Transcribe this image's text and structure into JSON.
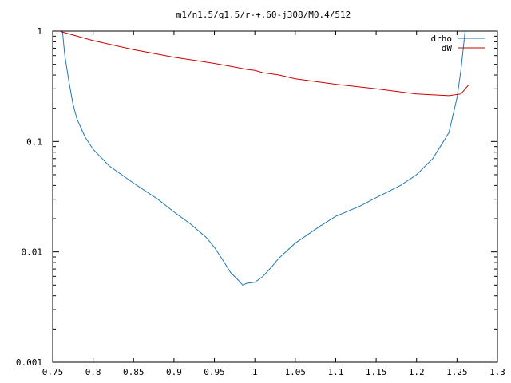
{
  "chart_data": {
    "type": "line",
    "title": "m1/n1.5/q1.5/r-+.60-j308/M0.4/512",
    "xlabel": "",
    "ylabel": "",
    "xlim": [
      0.75,
      1.3
    ],
    "ylim": [
      0.001,
      1
    ],
    "yscale": "log",
    "grid": false,
    "legend_position": "top-right",
    "x_ticks": [
      "0.75",
      "0.8",
      "0.85",
      "0.9",
      "0.95",
      "1",
      "1.05",
      "1.1",
      "1.15",
      "1.2",
      "1.25",
      "1.3"
    ],
    "y_ticks": [
      "0.001",
      "0.01",
      "0.1",
      "1"
    ],
    "series": [
      {
        "name": "drho",
        "color": "#1f77b4",
        "x": [
          0.762,
          0.765,
          0.77,
          0.775,
          0.78,
          0.79,
          0.8,
          0.82,
          0.85,
          0.88,
          0.9,
          0.92,
          0.94,
          0.95,
          0.96,
          0.97,
          0.98,
          0.985,
          0.99,
          1.0,
          1.01,
          1.02,
          1.03,
          1.05,
          1.08,
          1.1,
          1.13,
          1.15,
          1.18,
          1.2,
          1.22,
          1.24,
          1.25,
          1.255,
          1.26
        ],
        "y": [
          1.0,
          0.6,
          0.35,
          0.22,
          0.16,
          0.11,
          0.085,
          0.06,
          0.042,
          0.03,
          0.023,
          0.018,
          0.0135,
          0.011,
          0.0085,
          0.0065,
          0.0055,
          0.005,
          0.0052,
          0.0053,
          0.006,
          0.0072,
          0.0088,
          0.012,
          0.017,
          0.021,
          0.026,
          0.031,
          0.04,
          0.05,
          0.07,
          0.12,
          0.25,
          0.45,
          1.0
        ]
      },
      {
        "name": "dW",
        "color": "#cc0000",
        "x": [
          0.76,
          0.8,
          0.85,
          0.9,
          0.95,
          0.97,
          0.99,
          1.0,
          1.01,
          1.03,
          1.05,
          1.1,
          1.15,
          1.2,
          1.24,
          1.255,
          1.265
        ],
        "y": [
          0.99,
          0.82,
          0.68,
          0.58,
          0.51,
          0.48,
          0.45,
          0.44,
          0.42,
          0.4,
          0.37,
          0.33,
          0.3,
          0.27,
          0.26,
          0.27,
          0.33
        ]
      }
    ]
  }
}
